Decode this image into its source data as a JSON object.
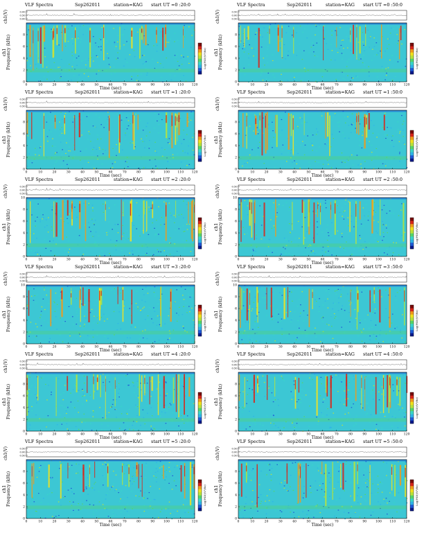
{
  "chart_data": [
    {
      "type": "heatmap",
      "header": "VLF Spectra",
      "date": "Sep262011",
      "station": "station=KAG",
      "start_ut": "start  UT  =0 :20:0",
      "channel_label": "ch1",
      "top_ylabel": "ch1(V)",
      "top_yticks": [
        "0.00",
        "0.50",
        "0.00"
      ],
      "ylabel": "Frequency  (kHz)",
      "xlabel": "Time  (sec)",
      "colorbar_label": "Log(PSD)(V²/Hz)",
      "xticks": [
        "0",
        "10",
        "20",
        "30",
        "40",
        "50",
        "60",
        "70",
        "80",
        "90",
        "100",
        "110",
        "120"
      ],
      "yticks": [
        "0",
        "2",
        "4",
        "6",
        "8"
      ],
      "xlim": [
        0,
        120
      ],
      "ylim": [
        0,
        10
      ]
    },
    {
      "type": "heatmap",
      "header": "VLF Spectra",
      "date": "Sep262011",
      "station": "station=KAG",
      "start_ut": "start  UT  =0 :50:0",
      "channel_label": "ch1",
      "top_ylabel": "ch1(V)",
      "top_yticks": [
        "0.50",
        "0.00",
        "0.50"
      ],
      "ylabel": "Frequency  (kHz)",
      "xlabel": "Time  (sec)",
      "colorbar_label": "Log(PSD)(V²/Hz)",
      "xticks": [
        "0",
        "10",
        "20",
        "30",
        "40",
        "50",
        "60",
        "70",
        "80",
        "90",
        "100",
        "110",
        "120"
      ],
      "yticks": [
        "0",
        "2",
        "4",
        "6",
        "8"
      ],
      "xlim": [
        0,
        120
      ],
      "ylim": [
        0,
        10
      ]
    },
    {
      "type": "heatmap",
      "header": "VLF Spectra",
      "date": "Sep262011",
      "station": "station=KAG",
      "start_ut": "start  UT  =1 :20:0",
      "channel_label": "ch1",
      "top_ylabel": "ch1(V)",
      "top_yticks": [
        "0.50",
        "0.00",
        "0.50"
      ],
      "ylabel": "Frequency  (kHz)",
      "xlabel": "Time  (sec)",
      "colorbar_label": "Log(PSD)(V²/Hz)",
      "xticks": [
        "0",
        "10",
        "20",
        "30",
        "40",
        "50",
        "60",
        "70",
        "80",
        "90",
        "100",
        "110",
        "120"
      ],
      "yticks": [
        "0",
        "2",
        "4",
        "6",
        "8"
      ],
      "xlim": [
        0,
        120
      ],
      "ylim": [
        0,
        10
      ]
    },
    {
      "type": "heatmap",
      "header": "VLF Spectra",
      "date": "Sep262011",
      "station": "station=KAG",
      "start_ut": "start  UT  =1 :50:0",
      "channel_label": "ch1",
      "top_ylabel": "ch1(V)",
      "top_yticks": [
        "0.50",
        "0.00",
        "0.50"
      ],
      "ylabel": "Frequency  (kHz)",
      "xlabel": "Time  (sec)",
      "colorbar_label": "Log(PSD)(V²/Hz)",
      "xticks": [
        "0",
        "10",
        "20",
        "30",
        "40",
        "50",
        "60",
        "70",
        "80",
        "90",
        "100",
        "110",
        "120"
      ],
      "yticks": [
        "0",
        "2",
        "4",
        "6",
        "8"
      ],
      "xlim": [
        0,
        120
      ],
      "ylim": [
        0,
        10
      ]
    },
    {
      "type": "heatmap",
      "header": "VLF Spectra",
      "date": "Sep262011",
      "station": "station=KAG",
      "start_ut": "start  UT  =2 :20:0",
      "channel_label": "ch1",
      "top_ylabel": "ch1(V)",
      "top_yticks": [
        "0.50",
        "0.00",
        "0.50"
      ],
      "ylabel": "Frequency  (kHz)",
      "xlabel": "Time  (sec)",
      "colorbar_label": "Log(PSD)(V²/Hz)",
      "xticks": [
        "0",
        "10",
        "20",
        "30",
        "40",
        "50",
        "60",
        "70",
        "80",
        "90",
        "100",
        "110",
        "120"
      ],
      "yticks": [
        "0",
        "2",
        "4",
        "6",
        "8",
        "10"
      ],
      "xlim": [
        0,
        120
      ],
      "ylim": [
        0,
        10
      ]
    },
    {
      "type": "heatmap",
      "header": "VLF Spectra",
      "date": "Sep262011",
      "station": "station=KAG",
      "start_ut": "start  UT  =2 :50:0",
      "channel_label": "ch1",
      "top_ylabel": "ch1(V)",
      "top_yticks": [
        "0.50",
        "0.00",
        "0.50"
      ],
      "ylabel": "Frequency  (kHz)",
      "xlabel": "Time  (sec)",
      "colorbar_label": "Log(PSD)(V²/Hz)",
      "xticks": [
        "0",
        "10",
        "20",
        "30",
        "40",
        "50",
        "60",
        "70",
        "80",
        "90",
        "100",
        "110",
        "120"
      ],
      "yticks": [
        "0",
        "2",
        "4",
        "6",
        "8",
        "10"
      ],
      "xlim": [
        0,
        120
      ],
      "ylim": [
        0,
        10
      ]
    },
    {
      "type": "heatmap",
      "header": "VLF Spectra",
      "date": "Sep262011",
      "station": "station=KAG",
      "start_ut": "start  UT  =3 :20:0",
      "channel_label": "ch1",
      "top_ylabel": "ch1(V)",
      "top_yticks": [
        "0.50",
        "0.00",
        "0.50"
      ],
      "ylabel": "Frequency  (kHz)",
      "xlabel": "Time  (sec)",
      "colorbar_label": "Log(PSD)(V²/Hz)",
      "xticks": [
        "0",
        "10",
        "20",
        "30",
        "40",
        "50",
        "60",
        "70",
        "80",
        "90",
        "100",
        "110",
        "120"
      ],
      "yticks": [
        "0",
        "2",
        "4",
        "6",
        "8",
        "10"
      ],
      "xlim": [
        0,
        120
      ],
      "ylim": [
        0,
        10
      ]
    },
    {
      "type": "heatmap",
      "header": "VLF Spectra",
      "date": "Sep262011",
      "station": "station=KAG",
      "start_ut": "start  UT  =3 :50:0",
      "channel_label": "ch1",
      "top_ylabel": "ch1(V)",
      "top_yticks": [
        "0.50",
        "0.00",
        "0.50"
      ],
      "ylabel": "Frequency  (kHz)",
      "xlabel": "Time  (sec)",
      "colorbar_label": "Log(PSD)(V²/Hz)",
      "xticks": [
        "0",
        "10",
        "20",
        "30",
        "40",
        "50",
        "60",
        "70",
        "80",
        "90",
        "100",
        "110",
        "120"
      ],
      "yticks": [
        "0",
        "2",
        "4",
        "6",
        "8",
        "10"
      ],
      "xlim": [
        0,
        120
      ],
      "ylim": [
        0,
        10
      ]
    },
    {
      "type": "heatmap",
      "header": "VLF Spectra",
      "date": "Sep262011",
      "station": "station=KAG",
      "start_ut": "start  UT  =4 :20:0",
      "channel_label": "ch1",
      "top_ylabel": "ch1(V)",
      "top_yticks": [
        "0.50",
        "0.00",
        "0.50"
      ],
      "ylabel": "Frequency  (kHz)",
      "xlabel": "Time  (sec)",
      "colorbar_label": "Log(PSD)(V²/Hz)",
      "xticks": [
        "0",
        "10",
        "20",
        "30",
        "40",
        "50",
        "60",
        "70",
        "80",
        "90",
        "100",
        "110",
        "120"
      ],
      "yticks": [
        "0",
        "2",
        "4",
        "6",
        "8"
      ],
      "xlim": [
        0,
        120
      ],
      "ylim": [
        0,
        10
      ]
    },
    {
      "type": "heatmap",
      "header": "VLF Spectra",
      "date": "Sep262011",
      "station": "station=KAG",
      "start_ut": "start  UT  =4 :50:0",
      "channel_label": "ch1",
      "top_ylabel": "ch1(V)",
      "top_yticks": [
        "0.50",
        "0.00",
        "0.50"
      ],
      "ylabel": "Frequency  (kHz)",
      "xlabel": "Time  (sec)",
      "colorbar_label": "Log(PSD)(V²/Hz)",
      "xticks": [
        "0",
        "10",
        "20",
        "30",
        "40",
        "50",
        "60",
        "70",
        "80",
        "90",
        "100",
        "110",
        "120"
      ],
      "yticks": [
        "0",
        "2",
        "4",
        "6",
        "8"
      ],
      "xlim": [
        0,
        120
      ],
      "ylim": [
        0,
        10
      ]
    },
    {
      "type": "heatmap",
      "header": "VLF Spectra",
      "date": "Sep262011",
      "station": "station=KAG",
      "start_ut": "start  UT  =5 :20:0",
      "channel_label": "ch1",
      "top_ylabel": "ch1(V)",
      "top_yticks": [
        "0.50",
        "0.00",
        "0.50"
      ],
      "ylabel": "Frequency  (kHz)",
      "xlabel": "Time  (sec)",
      "colorbar_label": "Log(PSD)(V²/Hz)",
      "xticks": [
        "0",
        "10",
        "20",
        "30",
        "40",
        "50",
        "60",
        "70",
        "80",
        "90",
        "100",
        "110",
        "120"
      ],
      "yticks": [
        "0",
        "2",
        "4",
        "6",
        "8"
      ],
      "xlim": [
        0,
        120
      ],
      "ylim": [
        0,
        10
      ]
    },
    {
      "type": "heatmap",
      "header": "VLF Spectra",
      "date": "Sep262011",
      "station": "station=KAG",
      "start_ut": "start  UT  =5 :50:0",
      "channel_label": "ch1",
      "top_ylabel": "ch1(V)",
      "top_yticks": [
        "0.50",
        "0.00",
        "0.50"
      ],
      "ylabel": "Frequency  (kHz)",
      "xlabel": "Time  (sec)",
      "colorbar_label": "Log(PSD)(V²/Hz)",
      "xticks": [
        "0",
        "10",
        "20",
        "30",
        "40",
        "50",
        "60",
        "70",
        "80",
        "90",
        "100",
        "110",
        "120"
      ],
      "yticks": [
        "0",
        "2",
        "4",
        "6",
        "8"
      ],
      "xlim": [
        0,
        120
      ],
      "ylim": [
        0,
        10
      ]
    }
  ],
  "colormap": [
    "#0a1a8c",
    "#1f5bd6",
    "#2fb3e8",
    "#39d6c8",
    "#55d66a",
    "#b9e33a",
    "#f2e21e",
    "#f29a1a",
    "#d8261a",
    "#7a0a0a"
  ]
}
